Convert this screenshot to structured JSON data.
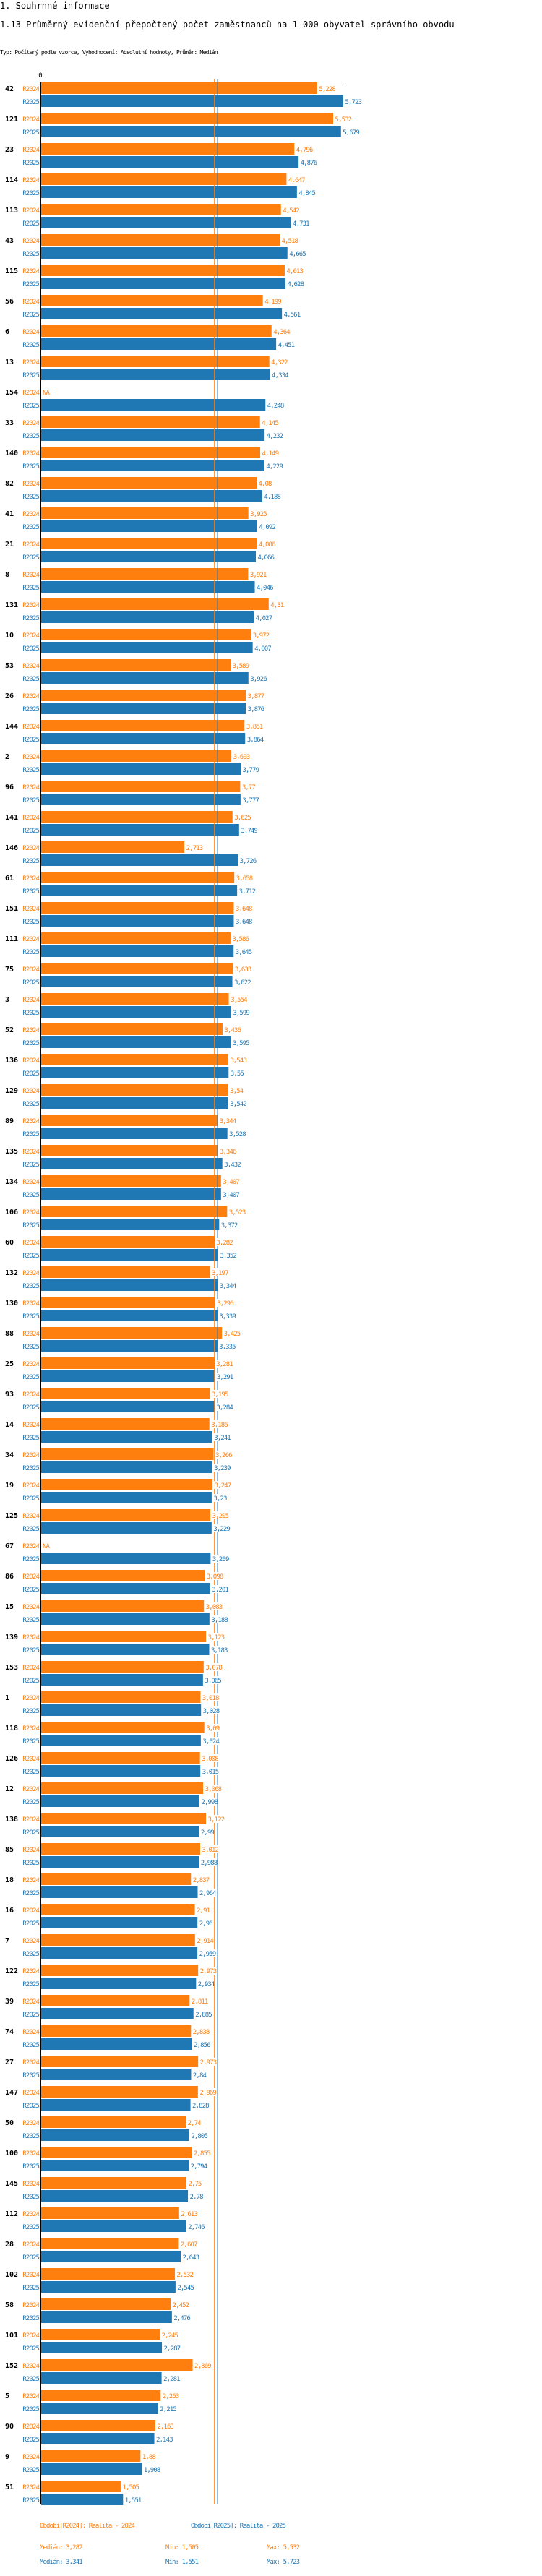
{
  "header": {
    "section": "1. Souhrnné informace",
    "title": "1.13 Průměrný evidenční přepočtený počet zaměstnanců na 1 000 obyvatel správního obvodu",
    "subtitle": "Typ: Počítaný podle vzorce, Vyhodnocení: Absolutní hodnoty, Průměr: Medián"
  },
  "colors": {
    "r2024": "#ff7f0e",
    "r2025": "#1f77b4"
  },
  "chart_data": {
    "type": "bar",
    "orientation": "horizontal",
    "title": "1.13 Průměrný evidenční přepočtený počet zaměstnanců na 1 000 obyvatel správního obvodu",
    "axis_zero_label": "0",
    "xlim": [
      0,
      5.723
    ],
    "na_label": "NA",
    "series_labels": [
      "R2024",
      "R2025"
    ],
    "categories": [
      "42",
      "121",
      "23",
      "114",
      "113",
      "43",
      "115",
      "56",
      "6",
      "13",
      "154",
      "33",
      "140",
      "82",
      "41",
      "21",
      "8",
      "131",
      "10",
      "53",
      "26",
      "144",
      "2",
      "96",
      "141",
      "146",
      "61",
      "151",
      "111",
      "75",
      "3",
      "52",
      "136",
      "129",
      "89",
      "135",
      "134",
      "106",
      "60",
      "132",
      "130",
      "88",
      "25",
      "93",
      "14",
      "34",
      "19",
      "125",
      "67",
      "86",
      "15",
      "139",
      "153",
      "1",
      "118",
      "126",
      "12",
      "138",
      "85",
      "18",
      "16",
      "7",
      "122",
      "39",
      "74",
      "27",
      "147",
      "50",
      "100",
      "145",
      "112",
      "28",
      "102",
      "58",
      "101",
      "152",
      "5",
      "90",
      "9",
      "51"
    ],
    "series": [
      {
        "name": "R2024",
        "values": [
          5.228,
          5.532,
          4.796,
          4.647,
          4.542,
          4.518,
          4.613,
          4.199,
          4.364,
          4.322,
          null,
          4.145,
          4.149,
          4.08,
          3.925,
          4.086,
          3.921,
          4.31,
          3.972,
          3.589,
          3.877,
          3.851,
          3.603,
          3.77,
          3.625,
          2.713,
          3.658,
          3.648,
          3.586,
          3.633,
          3.554,
          3.436,
          3.543,
          3.54,
          3.344,
          3.346,
          3.407,
          3.523,
          3.282,
          3.197,
          3.296,
          3.425,
          3.281,
          3.195,
          3.186,
          3.266,
          3.247,
          3.205,
          null,
          3.098,
          3.083,
          3.123,
          3.078,
          3.018,
          3.09,
          3.008,
          3.068,
          3.122,
          3.012,
          2.837,
          2.91,
          2.914,
          2.973,
          2.811,
          2.838,
          2.973,
          2.969,
          2.74,
          2.855,
          2.75,
          2.613,
          2.607,
          2.532,
          2.452,
          2.245,
          2.869,
          2.263,
          2.163,
          1.88,
          1.505
        ]
      },
      {
        "name": "R2025",
        "values": [
          5.723,
          5.679,
          4.876,
          4.845,
          4.731,
          4.665,
          4.628,
          4.561,
          4.451,
          4.334,
          4.248,
          4.232,
          4.229,
          4.188,
          4.092,
          4.066,
          4.046,
          4.027,
          4.007,
          3.926,
          3.876,
          3.864,
          3.779,
          3.777,
          3.749,
          3.726,
          3.712,
          3.648,
          3.645,
          3.622,
          3.599,
          3.595,
          3.55,
          3.542,
          3.528,
          3.432,
          3.407,
          3.372,
          3.352,
          3.344,
          3.339,
          3.335,
          3.291,
          3.284,
          3.241,
          3.239,
          3.23,
          3.229,
          3.209,
          3.201,
          3.188,
          3.183,
          3.065,
          3.028,
          3.024,
          3.015,
          2.998,
          2.99,
          2.988,
          2.964,
          2.96,
          2.959,
          2.934,
          2.885,
          2.856,
          2.84,
          2.828,
          2.805,
          2.794,
          2.78,
          2.746,
          2.643,
          2.545,
          2.476,
          2.287,
          2.281,
          2.215,
          2.143,
          1.908,
          1.551
        ]
      }
    ],
    "medians": [
      3.282,
      3.341
    ]
  },
  "legend": {
    "r2024": "Období[R2024]: Realita - 2024",
    "r2025": "Období[R2025]: Realita - 2025",
    "r2024_median": "Medián: 3,282",
    "r2024_min": "Min: 1,505",
    "r2024_max": "Max: 5,532",
    "r2025_median": "Medián: 3,341",
    "r2025_min": "Min: 1,551",
    "r2025_max": "Max: 5,723"
  }
}
